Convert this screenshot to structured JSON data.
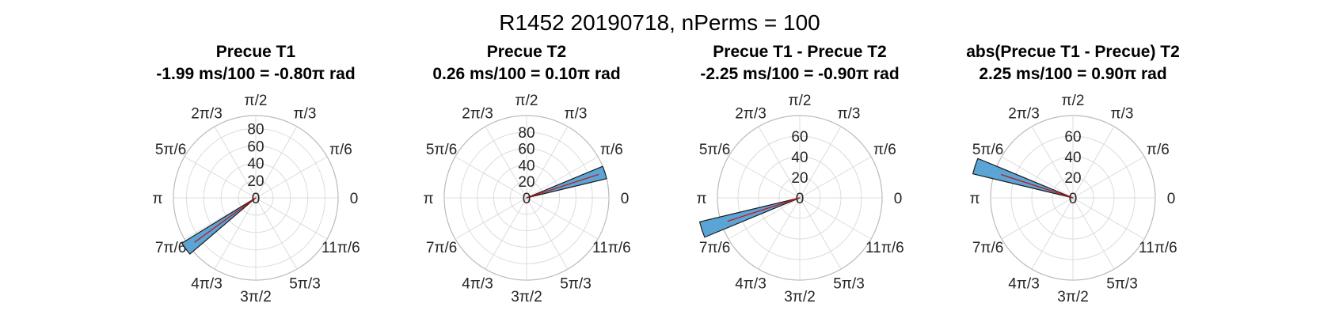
{
  "figure_title": "R1452 20190718, nPerms = 100",
  "angle_tick_labels": [
    "0",
    "π/6",
    "π/3",
    "π/2",
    "2π/3",
    "5π/6",
    "π",
    "7π/6",
    "4π/3",
    "3π/2",
    "5π/3",
    "11π/6"
  ],
  "colors": {
    "bar_fill": "#5ba4d6",
    "bar_edge": "#1a1a1a",
    "mean_line": "#cc1111",
    "grid": "#dcdcdc",
    "outer_circle": "#bbbbbb"
  },
  "chart_data": [
    {
      "type": "polar-histogram",
      "title": "Precue T1",
      "subtitle": "-1.99 ms/100 = -0.80π rad",
      "rlim": [
        0,
        95
      ],
      "r_ticks": [
        "0",
        "20",
        "40",
        "60",
        "80"
      ],
      "r_tick_values": [
        0,
        20,
        40,
        60,
        80
      ],
      "bins": [
        {
          "angle_deg": 216,
          "count": 100
        }
      ],
      "mean_angle_deg": 216
    },
    {
      "type": "polar-histogram",
      "title": "Precue T2",
      "subtitle": "0.26 ms/100 = 0.10π rad",
      "rlim": [
        0,
        100
      ],
      "r_ticks": [
        "0",
        "20",
        "40",
        "60",
        "80"
      ],
      "r_tick_values": [
        0,
        20,
        40,
        60,
        80
      ],
      "bins": [
        {
          "angle_deg": 18,
          "count": 100
        }
      ],
      "mean_angle_deg": 18
    },
    {
      "type": "polar-histogram",
      "title": "Precue T1 - Precue T2",
      "subtitle": "-2.25 ms/100 = -0.90π rad",
      "rlim": [
        0,
        80
      ],
      "r_ticks": [
        "0",
        "20",
        "40",
        "60"
      ],
      "r_tick_values": [
        0,
        20,
        40,
        60
      ],
      "bins": [
        {
          "angle_deg": 198,
          "count": 100
        }
      ],
      "mean_angle_deg": 198
    },
    {
      "type": "polar-histogram",
      "title": "abs(Precue T1 - Precue) T2",
      "subtitle": "2.25 ms/100 = 0.90π rad",
      "rlim": [
        0,
        80
      ],
      "r_ticks": [
        "0",
        "20",
        "40",
        "60"
      ],
      "r_tick_values": [
        0,
        20,
        40,
        60
      ],
      "bins": [
        {
          "angle_deg": 162,
          "count": 100
        }
      ],
      "mean_angle_deg": 162
    }
  ]
}
